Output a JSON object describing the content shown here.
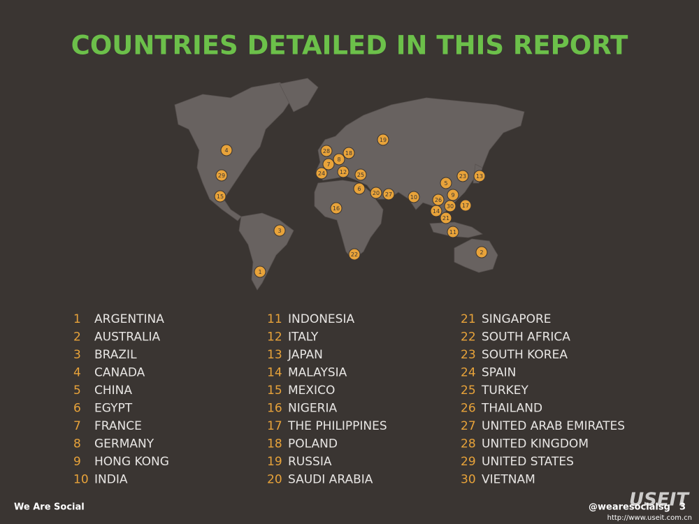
{
  "header": {
    "title": "COUNTRIES DETAILED IN THIS REPORT"
  },
  "countries": [
    {
      "number": 1,
      "name": "ARGENTINA"
    },
    {
      "number": 2,
      "name": "AUSTRALIA"
    },
    {
      "number": 3,
      "name": "BRAZIL"
    },
    {
      "number": 4,
      "name": "CANADA"
    },
    {
      "number": 5,
      "name": "CHINA"
    },
    {
      "number": 6,
      "name": "EGYPT"
    },
    {
      "number": 7,
      "name": "FRANCE"
    },
    {
      "number": 8,
      "name": "GERMANY"
    },
    {
      "number": 9,
      "name": "HONG KONG"
    },
    {
      "number": 10,
      "name": "INDIA"
    },
    {
      "number": 11,
      "name": "INDONESIA"
    },
    {
      "number": 12,
      "name": "ITALY"
    },
    {
      "number": 13,
      "name": "JAPAN"
    },
    {
      "number": 14,
      "name": "MALAYSIA"
    },
    {
      "number": 15,
      "name": "MEXICO"
    },
    {
      "number": 16,
      "name": "NIGERIA"
    },
    {
      "number": 17,
      "name": "THE PHILIPPINES"
    },
    {
      "number": 18,
      "name": "POLAND"
    },
    {
      "number": 19,
      "name": "RUSSIA"
    },
    {
      "number": 20,
      "name": "SAUDI ARABIA"
    },
    {
      "number": 21,
      "name": "SINGAPORE"
    },
    {
      "number": 22,
      "name": "SOUTH AFRICA"
    },
    {
      "number": 23,
      "name": "SOUTH KOREA"
    },
    {
      "number": 24,
      "name": "SPAIN"
    },
    {
      "number": 25,
      "name": "TURKEY"
    },
    {
      "number": 26,
      "name": "THAILAND"
    },
    {
      "number": 27,
      "name": "UNITED ARAB EMIRATES"
    },
    {
      "number": 28,
      "name": "UNITED KINGDOM"
    },
    {
      "number": 29,
      "name": "UNITED STATES"
    },
    {
      "number": 30,
      "name": "VIETNAM"
    }
  ],
  "footer": {
    "brand": "We Are Social",
    "handle": "@wearesocialsg",
    "page": "3",
    "watermark": "USEIT",
    "watermark_url": "http://www.useit.com.cn"
  }
}
